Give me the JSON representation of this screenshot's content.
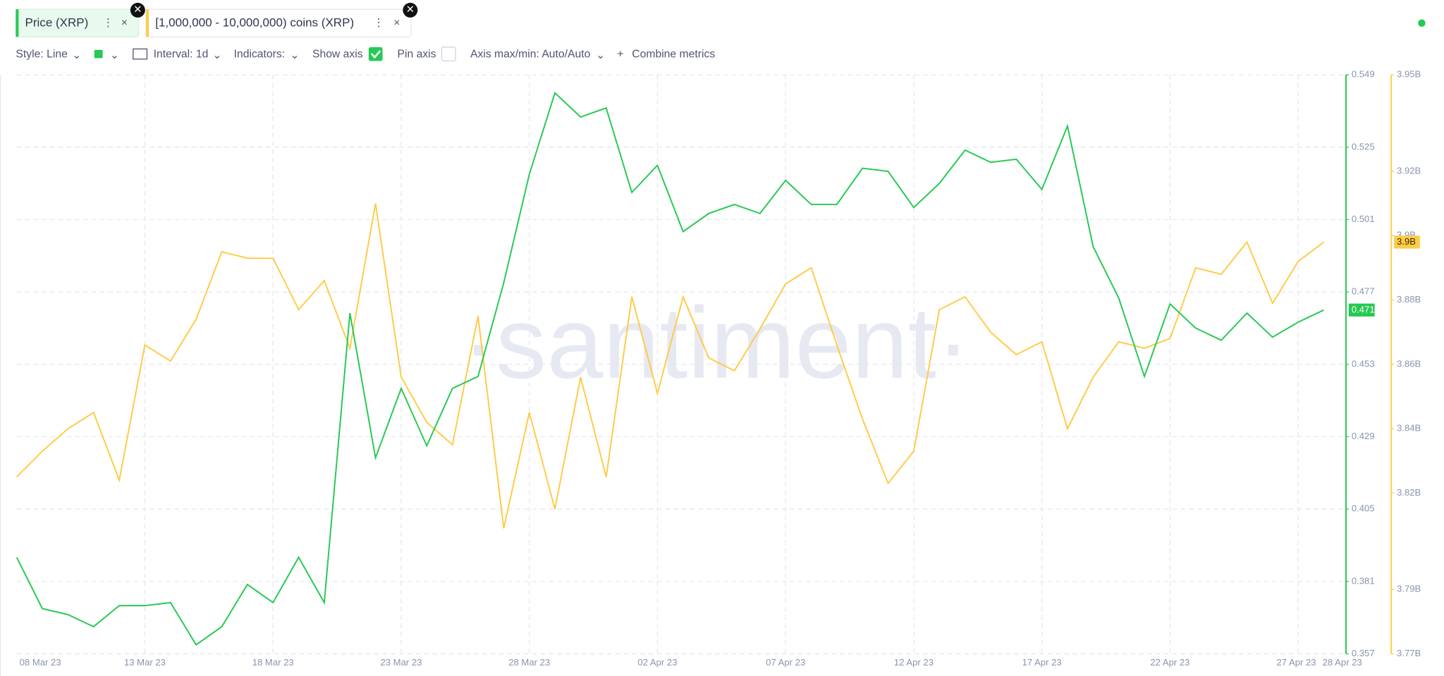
{
  "toolbar": {
    "style": "Style: Line",
    "interval": "Interval: 1d",
    "indicators": "Indicators:",
    "show_axis": "Show axis",
    "pin_axis": "Pin axis",
    "axis_minmax": "Axis max/min: Auto/Auto",
    "combine": "Combine metrics"
  },
  "watermark": "·santiment·",
  "chart_data": {
    "type": "line",
    "categories": [
      "08 Mar 23",
      null,
      null,
      null,
      null,
      "13 Mar 23",
      null,
      null,
      null,
      null,
      "18 Mar 23",
      null,
      null,
      null,
      null,
      "23 Mar 23",
      null,
      null,
      null,
      null,
      "28 Mar 23",
      null,
      null,
      null,
      null,
      "02 Apr 23",
      null,
      null,
      null,
      null,
      "07 Apr 23",
      null,
      null,
      null,
      null,
      "12 Apr 23",
      null,
      null,
      null,
      null,
      "17 Apr 23",
      null,
      null,
      null,
      null,
      "22 Apr 23",
      null,
      null,
      null,
      null,
      "27 Apr 23",
      "28 Apr 23"
    ],
    "series": [
      {
        "name": "Price (XRP)",
        "color": "#26c953",
        "last_label": "0.471",
        "values": [
          0.389,
          0.372,
          0.37,
          0.366,
          0.373,
          0.373,
          0.374,
          0.36,
          0.366,
          0.38,
          0.374,
          0.389,
          0.374,
          0.47,
          0.422,
          0.445,
          0.426,
          0.445,
          0.449,
          0.48,
          0.516,
          0.543,
          0.535,
          0.538,
          0.51,
          0.519,
          0.497,
          0.503,
          0.506,
          0.503,
          0.514,
          0.506,
          0.506,
          0.518,
          0.517,
          0.505,
          0.513,
          0.524,
          0.52,
          0.521,
          0.511,
          0.532,
          0.492,
          0.475,
          0.449,
          0.473,
          0.465,
          0.461,
          0.47,
          0.462,
          0.467,
          0.471
        ]
      },
      {
        "name": "[1,000,000 - 10,000,000) coins (XRP)",
        "color": "#ffcb47",
        "axis": "y2",
        "last_label": "3.9B",
        "values": [
          3.825,
          3.833,
          3.84,
          3.845,
          3.824,
          3.866,
          3.861,
          3.874,
          3.895,
          3.893,
          3.893,
          3.877,
          3.886,
          3.865,
          3.91,
          3.856,
          3.842,
          3.835,
          3.875,
          3.809,
          3.845,
          3.815,
          3.856,
          3.825,
          3.881,
          3.851,
          3.881,
          3.862,
          3.858,
          3.871,
          3.885,
          3.89,
          3.866,
          3.843,
          3.823,
          3.833,
          3.877,
          3.881,
          3.87,
          3.863,
          3.867,
          3.84,
          3.856,
          3.867,
          3.865,
          3.868,
          3.89,
          3.888,
          3.898,
          3.879,
          3.892,
          3.898
        ]
      }
    ],
    "ylim": [
      0.357,
      0.549
    ],
    "yticks": [
      0.357,
      0.381,
      0.405,
      0.429,
      0.453,
      0.477,
      0.501,
      0.525,
      0.549
    ],
    "y2lim": [
      3.77,
      3.95
    ],
    "y2ticks": [
      {
        "value": 3.77,
        "label": "3.77B"
      },
      {
        "value": 3.79,
        "label": "3.79B"
      },
      {
        "value": 3.82,
        "label": "3.82B"
      },
      {
        "value": 3.84,
        "label": "3.84B"
      },
      {
        "value": 3.86,
        "label": "3.86B"
      },
      {
        "value": 3.88,
        "label": "3.88B"
      },
      {
        "value": 3.9,
        "label": "3.9B"
      },
      {
        "value": 3.92,
        "label": "3.92B"
      },
      {
        "value": 3.95,
        "label": "3.95B"
      }
    ],
    "grid": true
  }
}
